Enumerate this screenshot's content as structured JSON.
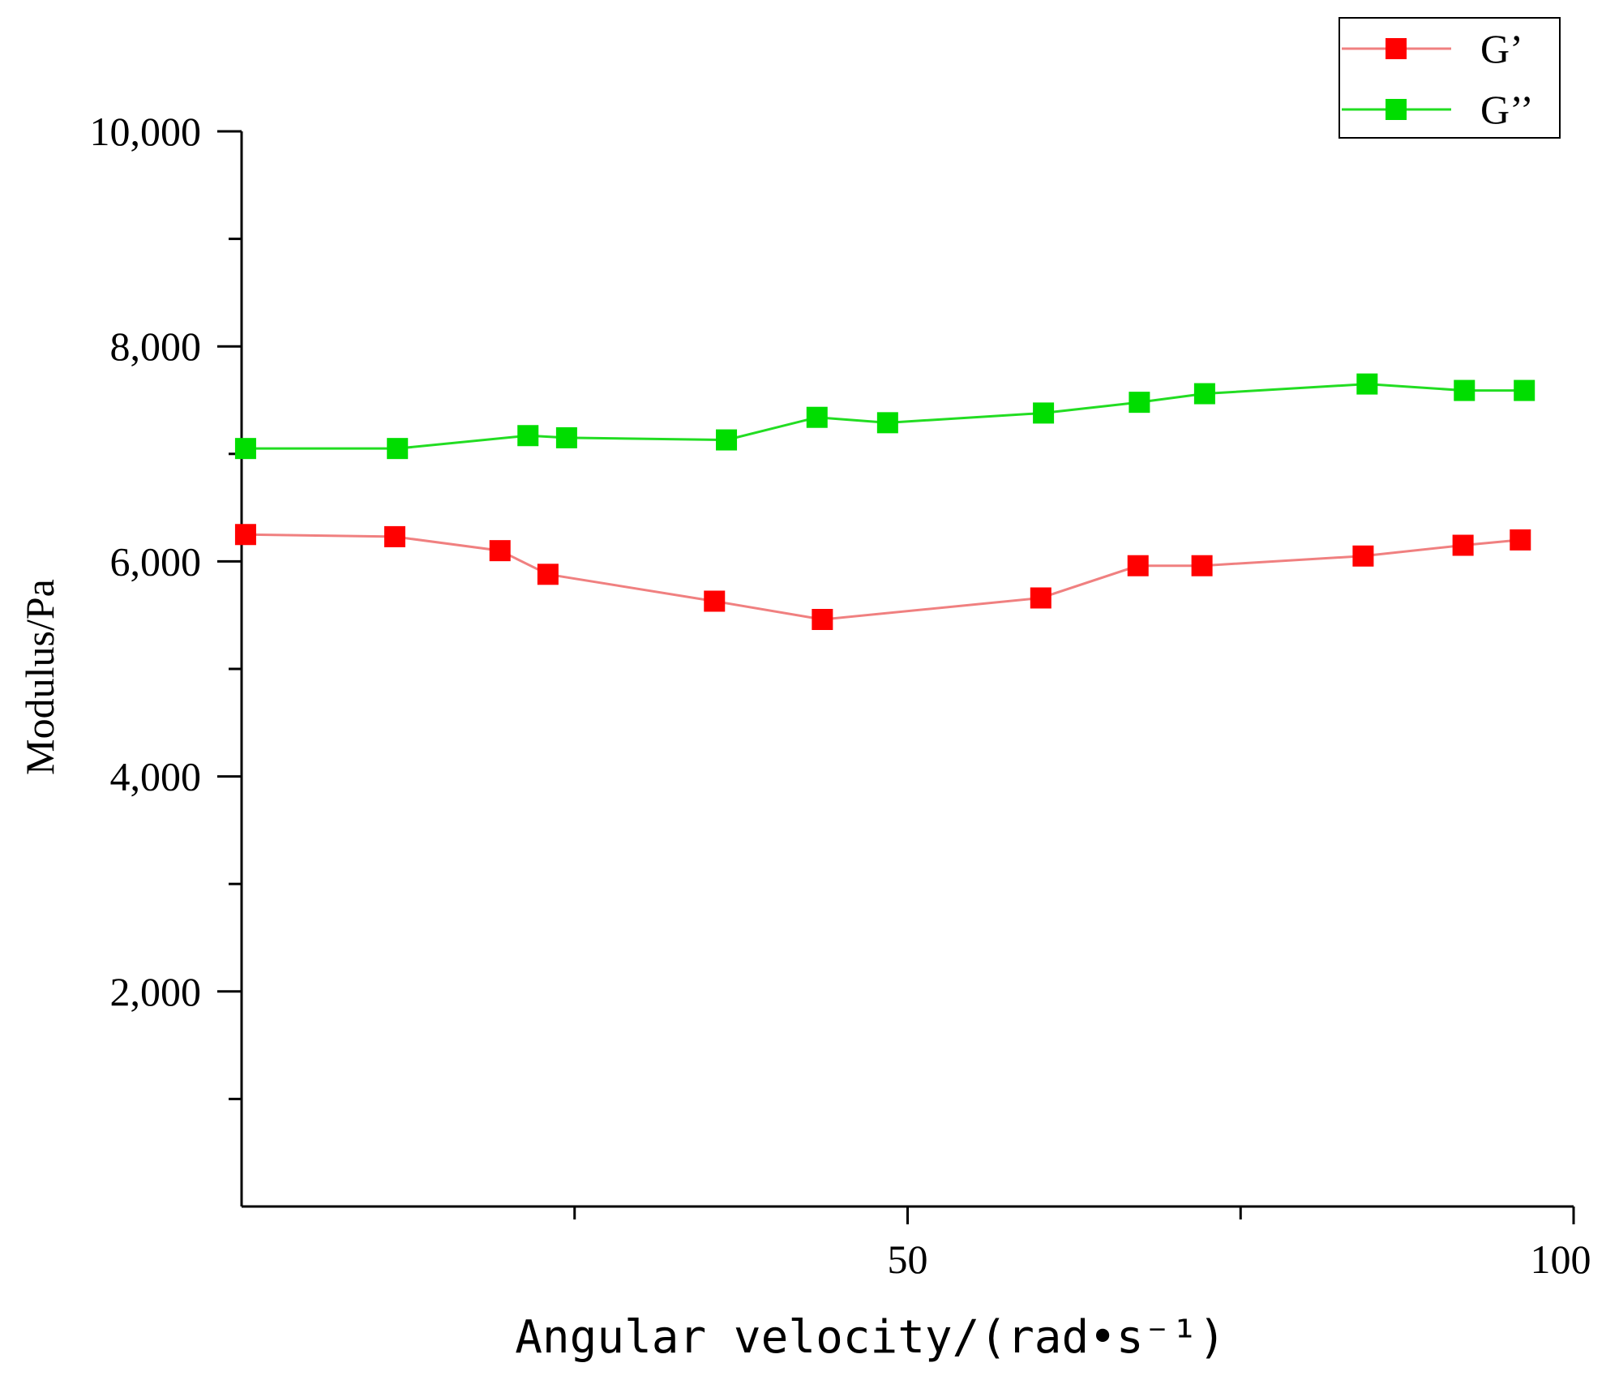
{
  "chart_data": {
    "type": "line",
    "title": "",
    "xlabel": "Angular velocity/(rad•s⁻¹)",
    "ylabel": "Modulus/Pa",
    "xlim": [
      0,
      100
    ],
    "ylim": [
      0,
      10000
    ],
    "x_ticks": [
      25,
      50,
      75,
      100
    ],
    "x_tick_labels": [
      "50",
      "100"
    ],
    "x_tick_label_values": [
      50,
      100
    ],
    "y_ticks": [
      1000,
      2000,
      3000,
      4000,
      5000,
      6000,
      7000,
      8000,
      9000,
      10000
    ],
    "y_tick_labels": [
      "2,000",
      "4,000",
      "6,000",
      "8,000",
      "10,000"
    ],
    "y_tick_label_values": [
      2000,
      4000,
      6000,
      8000,
      10000
    ],
    "grid": false,
    "legend_position": "top-right",
    "series": [
      {
        "name": "G’",
        "color": "#ff0000",
        "line_color": "#f08080",
        "marker": "square",
        "x": [
          0.3,
          11.5,
          19.4,
          23.0,
          35.5,
          43.6,
          60.0,
          67.3,
          72.1,
          84.2,
          91.7,
          96.0
        ],
        "y": [
          6250,
          6230,
          6100,
          5880,
          5630,
          5460,
          5660,
          5960,
          5960,
          6050,
          6150,
          6200
        ]
      },
      {
        "name": "G’’",
        "color": "#00dd00",
        "line_color": "#22dd22",
        "marker": "square",
        "x": [
          0.3,
          11.7,
          21.5,
          24.4,
          36.4,
          43.2,
          48.5,
          60.2,
          67.4,
          72.3,
          84.5,
          91.8,
          96.3
        ],
        "y": [
          7050,
          7050,
          7170,
          7150,
          7130,
          7340,
          7290,
          7380,
          7480,
          7560,
          7650,
          7590,
          7590
        ]
      }
    ]
  }
}
